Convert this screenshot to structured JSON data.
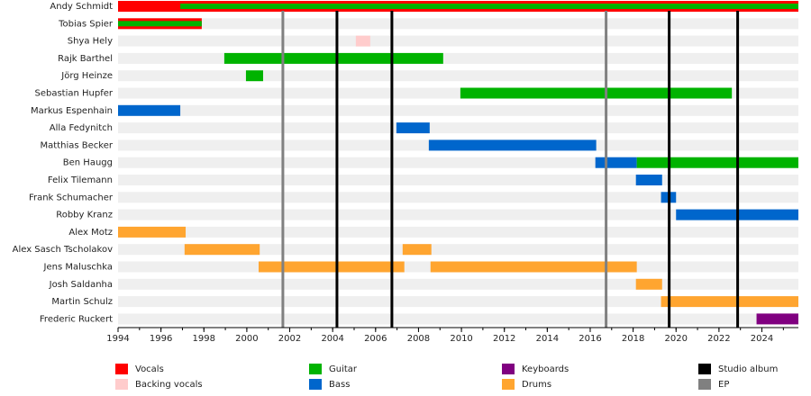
{
  "chart_data": {
    "type": "timeline",
    "xlim": [
      1994,
      2025.7
    ],
    "xticks": [
      1994,
      1996,
      1998,
      2000,
      2002,
      2004,
      2006,
      2008,
      2010,
      2012,
      2014,
      2016,
      2018,
      2020,
      2022,
      2024
    ],
    "roles": [
      {
        "name": "Vocals",
        "color": "#ff0000"
      },
      {
        "name": "Backing vocals",
        "color": "#ffcccc"
      },
      {
        "name": "Guitar",
        "color": "#00b300"
      },
      {
        "name": "Bass",
        "color": "#0066cc"
      },
      {
        "name": "Keyboards",
        "color": "#800080"
      },
      {
        "name": "Drums",
        "color": "#ffa530"
      }
    ],
    "releases": [
      {
        "name": "Studio album",
        "color": "#000000",
        "x": [
          2004.2,
          2006.76,
          2019.68,
          2022.87
        ]
      },
      {
        "name": "EP",
        "color": "#808080",
        "x": [
          2001.68,
          2016.74
        ]
      }
    ],
    "rows": [
      {
        "name": "Andy Schmidt",
        "periods": [
          {
            "role": "Vocals",
            "start": 1994,
            "end": 2025.7
          },
          {
            "role": "Guitar",
            "start": 1996.9,
            "end": 2025.7
          }
        ]
      },
      {
        "name": "Tobias Spier",
        "periods": [
          {
            "role": "Vocals",
            "start": 1994,
            "end": 1997.9
          },
          {
            "role": "Guitar",
            "start": 1994,
            "end": 1997.9
          }
        ]
      },
      {
        "name": "Shya Hely",
        "periods": [
          {
            "role": "Backing vocals",
            "start": 2005.08,
            "end": 2005.75
          }
        ]
      },
      {
        "name": "Rajk Barthel",
        "periods": [
          {
            "role": "Guitar",
            "start": 1998.95,
            "end": 2009.15
          }
        ]
      },
      {
        "name": "Jörg Heinze",
        "periods": [
          {
            "role": "Guitar",
            "start": 1999.96,
            "end": 2000.76
          }
        ]
      },
      {
        "name": "Sebastian Hupfer",
        "periods": [
          {
            "role": "Guitar",
            "start": 2009.95,
            "end": 2022.6
          }
        ]
      },
      {
        "name": "Markus Espenhain",
        "periods": [
          {
            "role": "Bass",
            "start": 1994,
            "end": 1996.9
          }
        ]
      },
      {
        "name": "Alla Fedynitch",
        "periods": [
          {
            "role": "Bass",
            "start": 2006.97,
            "end": 2008.52
          }
        ]
      },
      {
        "name": "Matthias Becker",
        "periods": [
          {
            "role": "Bass",
            "start": 2008.48,
            "end": 2016.28
          }
        ]
      },
      {
        "name": "Ben Haugg",
        "periods": [
          {
            "role": "Bass",
            "start": 2016.24,
            "end": 2018.17
          },
          {
            "role": "Guitar",
            "start": 2018.17,
            "end": 2025.7
          }
        ]
      },
      {
        "name": "Felix Tilemann",
        "periods": [
          {
            "role": "Bass",
            "start": 2018.13,
            "end": 2019.35
          }
        ]
      },
      {
        "name": "Frank Schumacher",
        "periods": [
          {
            "role": "Bass",
            "start": 2019.3,
            "end": 2020.0
          }
        ]
      },
      {
        "name": "Robby Kranz",
        "periods": [
          {
            "role": "Bass",
            "start": 2020.0,
            "end": 2025.7
          }
        ]
      },
      {
        "name": "Alex Motz",
        "periods": [
          {
            "role": "Drums",
            "start": 1994,
            "end": 1997.15
          }
        ]
      },
      {
        "name": "Alex Sasch Tscholakov",
        "periods": [
          {
            "role": "Drums",
            "start": 1997.1,
            "end": 2000.6
          },
          {
            "role": "Drums",
            "start": 2007.26,
            "end": 2008.6
          }
        ]
      },
      {
        "name": "Jens Maluschka",
        "periods": [
          {
            "role": "Drums",
            "start": 2000.55,
            "end": 2007.34
          },
          {
            "role": "Drums",
            "start": 2008.56,
            "end": 2018.17
          }
        ]
      },
      {
        "name": "Josh Saldanha",
        "periods": [
          {
            "role": "Drums",
            "start": 2018.13,
            "end": 2019.35
          }
        ]
      },
      {
        "name": "Martin Schulz",
        "periods": [
          {
            "role": "Drums",
            "start": 2019.3,
            "end": 2025.7
          }
        ]
      },
      {
        "name": "Frederic Ruckert",
        "periods": [
          {
            "role": "Keyboards",
            "start": 2023.75,
            "end": 2025.7
          }
        ]
      }
    ]
  }
}
